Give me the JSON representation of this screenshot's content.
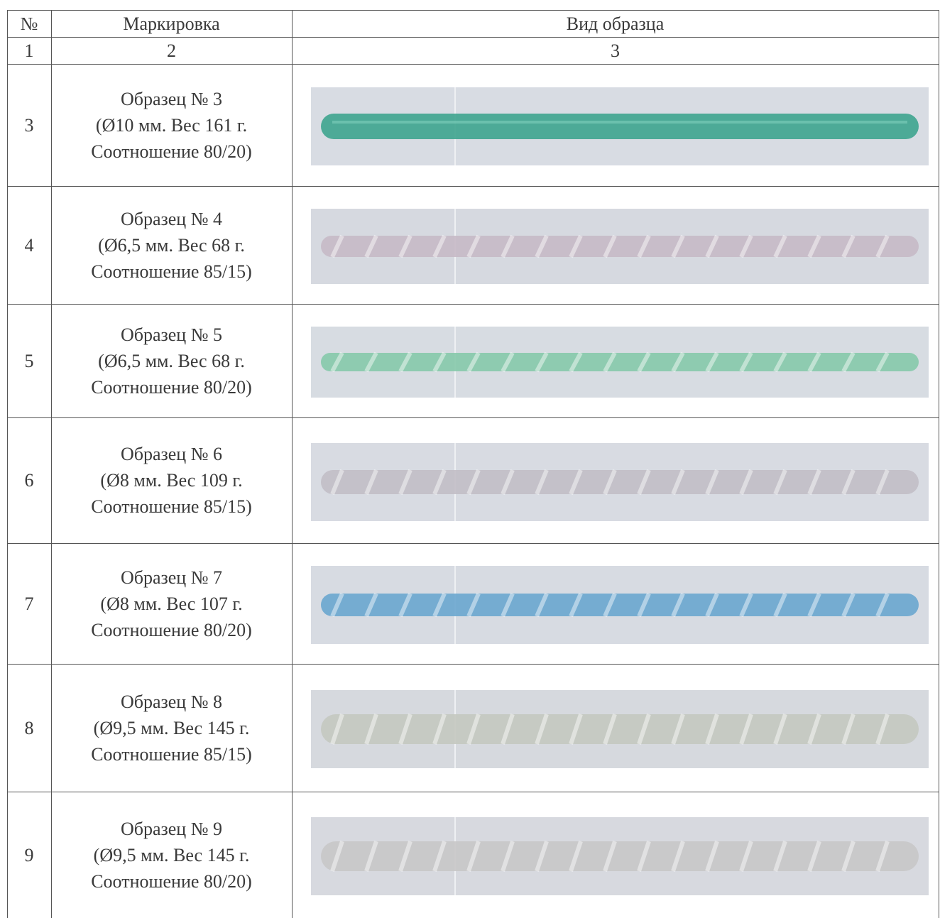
{
  "header": [
    "№",
    "Маркировка",
    "Вид образца"
  ],
  "number_row": [
    "1",
    "2",
    "3"
  ],
  "rows": [
    {
      "number": "3",
      "label": [
        "Образец № 3",
        "(Ø10 мм. Вес 161 г.",
        "Соотношение 80/20)"
      ]
    },
    {
      "number": "4",
      "label": [
        "Образец № 4",
        "(Ø6,5 мм. Вес 68 г.",
        "Соотношение 85/15)"
      ]
    },
    {
      "number": "5",
      "label": [
        "Образец № 5",
        "(Ø6,5 мм. Вес 68 г.",
        "Соотношение 80/20)"
      ]
    },
    {
      "number": "6",
      "label": [
        "Образец № 6",
        "(Ø8 мм. Вес 109 г.",
        "Соотношение 85/15)"
      ]
    },
    {
      "number": "7",
      "label": [
        "Образец № 7",
        "(Ø8 мм. Вес 107 г.",
        "Соотношение 80/20)"
      ]
    },
    {
      "number": "8",
      "label": [
        "Образец № 8",
        "(Ø9,5 мм. Вес 145 г.",
        "Соотношение 85/15)"
      ]
    },
    {
      "number": "9",
      "label": [
        "Образец № 9",
        "(Ø9,5 мм. Вес 145 г.",
        "Соотношение 80/20)"
      ]
    }
  ]
}
